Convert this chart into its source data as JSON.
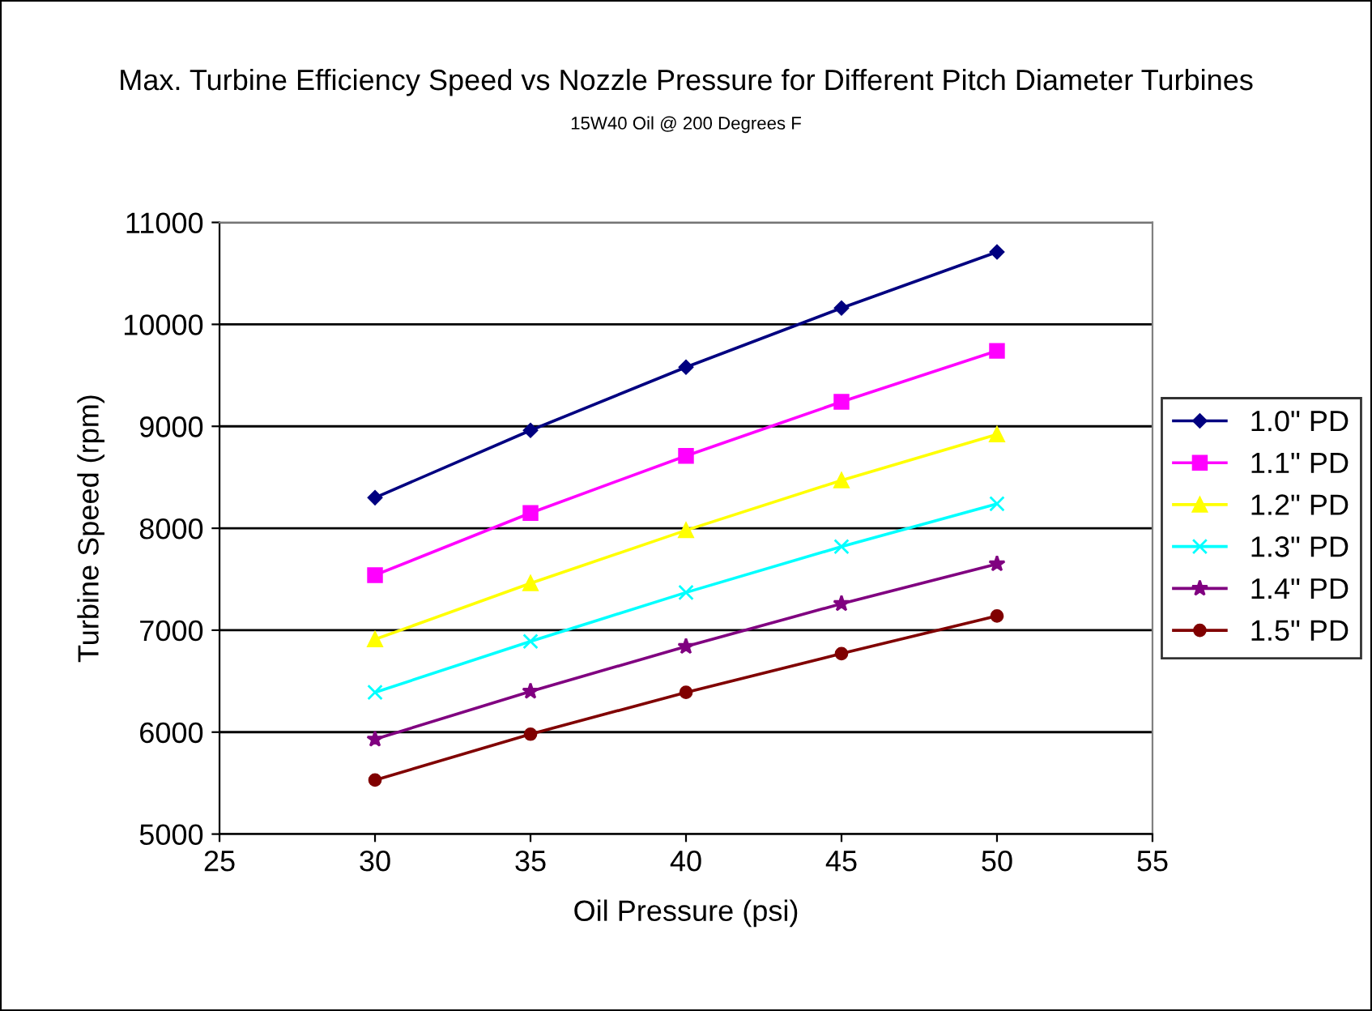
{
  "chart_data": {
    "type": "line",
    "title": "Max. Turbine Efficiency Speed vs Nozzle Pressure for Different Pitch Diameter Turbines",
    "subtitle": "15W40 Oil @ 200 Degrees F",
    "xlabel": "Oil Pressure (psi)",
    "ylabel": "Turbine Speed (rpm)",
    "x": [
      30,
      35,
      40,
      45,
      50
    ],
    "series": [
      {
        "name": "1.0\" PD",
        "color": "#000080",
        "marker": "diamond",
        "values": [
          8300,
          8960,
          9580,
          10160,
          10710
        ]
      },
      {
        "name": "1.1\" PD",
        "color": "#ff00ff",
        "marker": "square",
        "values": [
          7540,
          8150,
          8710,
          9240,
          9740
        ]
      },
      {
        "name": "1.2\" PD",
        "color": "#ffff00",
        "marker": "triangle",
        "values": [
          6910,
          7460,
          7980,
          8470,
          8920
        ]
      },
      {
        "name": "1.3\" PD",
        "color": "#00ffff",
        "marker": "cross",
        "values": [
          6390,
          6890,
          7370,
          7820,
          8240
        ]
      },
      {
        "name": "1.4\" PD",
        "color": "#800080",
        "marker": "star",
        "values": [
          5930,
          6400,
          6840,
          7260,
          7650
        ]
      },
      {
        "name": "1.5\" PD",
        "color": "#800000",
        "marker": "circle",
        "values": [
          5530,
          5980,
          6390,
          6770,
          7140
        ]
      }
    ],
    "xlim": [
      25,
      55
    ],
    "xticks": [
      25,
      30,
      35,
      40,
      45,
      50,
      55
    ],
    "ylim": [
      5000,
      11000
    ],
    "yticks": [
      5000,
      6000,
      7000,
      8000,
      9000,
      10000,
      11000
    ],
    "grid": "y",
    "legend": "right"
  }
}
